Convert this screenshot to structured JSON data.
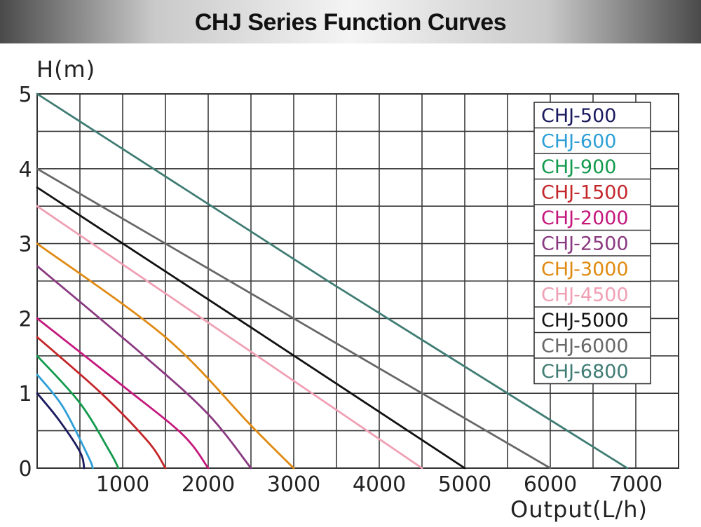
{
  "header": {
    "title": "CHJ Series Function Curves"
  },
  "chart_data": {
    "type": "line",
    "xlabel": "Output(L/h)",
    "ylabel": "H(m)",
    "xlim": [
      0,
      7500
    ],
    "ylim": [
      0,
      5
    ],
    "x_ticks": [
      "1000",
      "2000",
      "3000",
      "4000",
      "5000",
      "6000",
      "7000"
    ],
    "y_ticks": [
      "0",
      "1",
      "2",
      "3",
      "4",
      "5"
    ],
    "grid": true,
    "legend_position": "top-right",
    "series": [
      {
        "name": "CHJ-500",
        "color": "#1a1a5e",
        "points": [
          [
            0,
            1.0
          ],
          [
            250,
            0.65
          ],
          [
            500,
            0.22
          ],
          [
            550,
            0
          ]
        ]
      },
      {
        "name": "CHJ-600",
        "color": "#2e9fd6",
        "points": [
          [
            0,
            1.25
          ],
          [
            300,
            0.82
          ],
          [
            600,
            0.15
          ],
          [
            650,
            0
          ]
        ]
      },
      {
        "name": "CHJ-900",
        "color": "#139a4c",
        "points": [
          [
            0,
            1.5
          ],
          [
            500,
            0.87
          ],
          [
            850,
            0.22
          ],
          [
            950,
            0
          ]
        ]
      },
      {
        "name": "CHJ-1500",
        "color": "#c4262a",
        "points": [
          [
            0,
            1.75
          ],
          [
            750,
            1.0
          ],
          [
            1300,
            0.35
          ],
          [
            1500,
            0
          ]
        ]
      },
      {
        "name": "CHJ-2000",
        "color": "#c4187c",
        "points": [
          [
            0,
            2.0
          ],
          [
            1000,
            1.1
          ],
          [
            1700,
            0.45
          ],
          [
            2000,
            0
          ]
        ]
      },
      {
        "name": "CHJ-2500",
        "color": "#8a3a80",
        "points": [
          [
            0,
            2.7
          ],
          [
            1250,
            1.5
          ],
          [
            2000,
            0.72
          ],
          [
            2500,
            0
          ]
        ]
      },
      {
        "name": "CHJ-3000",
        "color": "#e08a12",
        "points": [
          [
            0,
            3.0
          ],
          [
            1500,
            1.75
          ],
          [
            2500,
            0.57
          ],
          [
            3000,
            0
          ]
        ]
      },
      {
        "name": "CHJ-4500",
        "color": "#f0a0b4",
        "points": [
          [
            0,
            3.5
          ],
          [
            2250,
            1.75
          ],
          [
            4500,
            0
          ]
        ]
      },
      {
        "name": "CHJ-5000",
        "color": "#111111",
        "points": [
          [
            0,
            3.75
          ],
          [
            2500,
            1.88
          ],
          [
            5000,
            0
          ]
        ]
      },
      {
        "name": "CHJ-6000",
        "color": "#686868",
        "points": [
          [
            0,
            4.0
          ],
          [
            3000,
            2.0
          ],
          [
            6000,
            0
          ]
        ]
      },
      {
        "name": "CHJ-6800",
        "color": "#3f7c74",
        "points": [
          [
            0,
            5.0
          ],
          [
            3400,
            2.5
          ],
          [
            6900,
            0
          ]
        ]
      }
    ]
  }
}
